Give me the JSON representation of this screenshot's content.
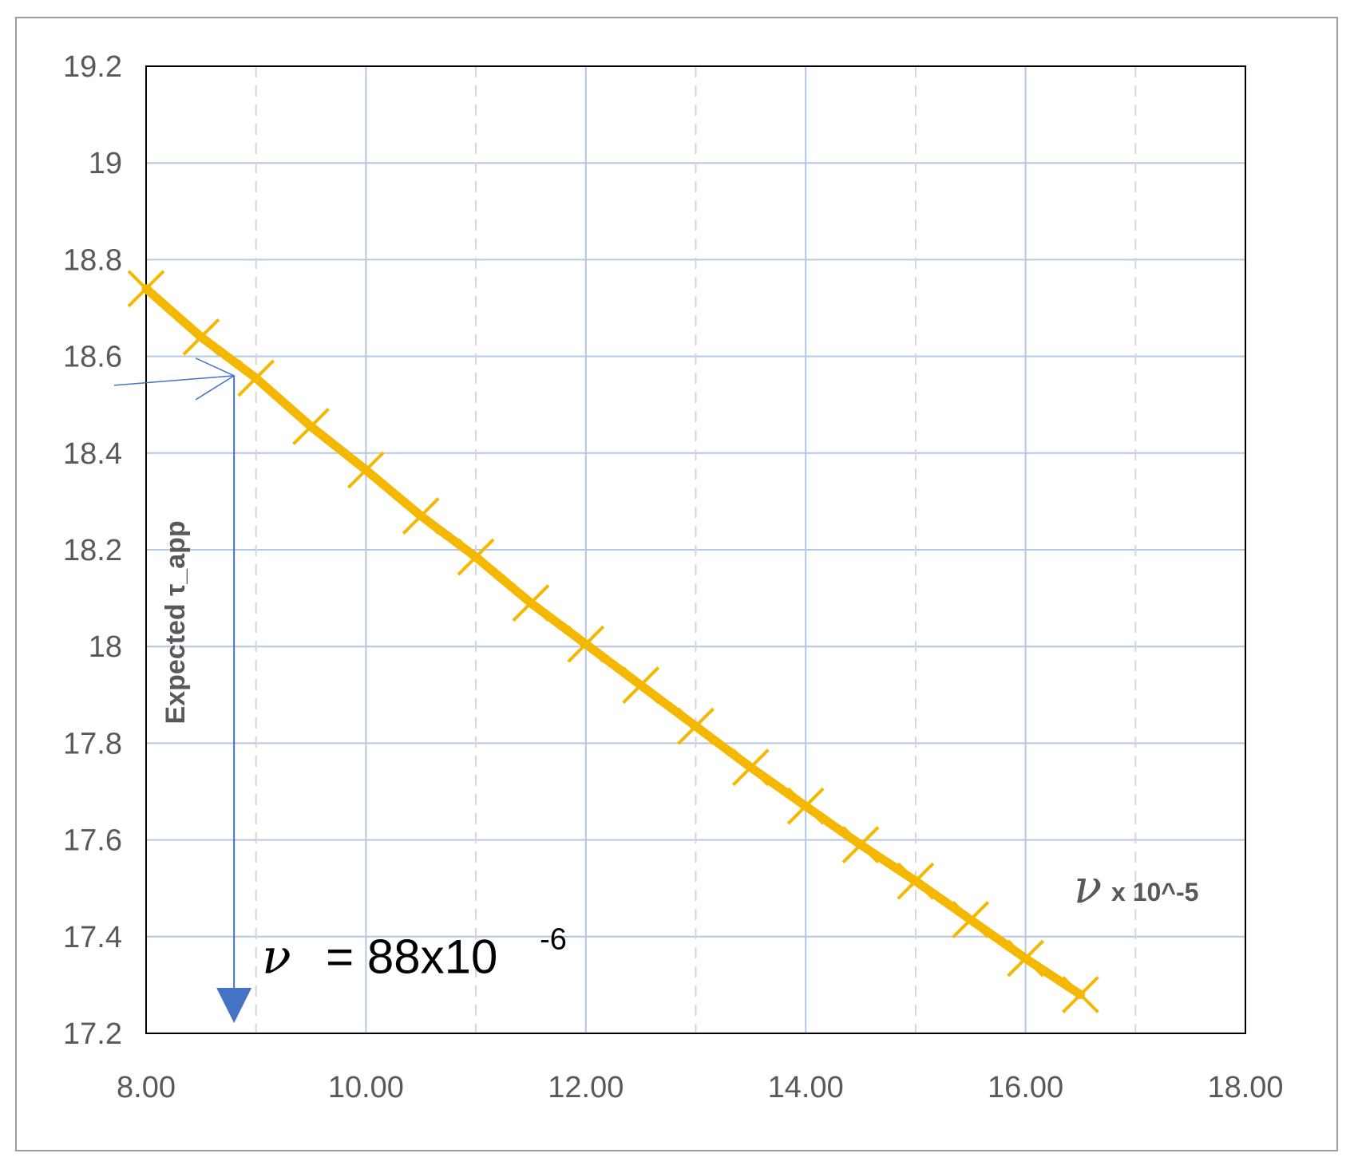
{
  "chart_data": {
    "type": "line",
    "x": [
      8.0,
      8.5,
      9.0,
      9.5,
      10.0,
      10.5,
      11.0,
      11.5,
      12.0,
      12.5,
      13.0,
      13.5,
      14.0,
      14.5,
      15.0,
      15.5,
      16.0,
      16.5
    ],
    "series": [
      {
        "values": [
          18.74,
          18.64,
          18.555,
          18.455,
          18.365,
          18.27,
          18.185,
          18.09,
          18.005,
          17.92,
          17.835,
          17.75,
          17.67,
          17.59,
          17.515,
          17.435,
          17.355,
          17.28
        ]
      }
    ],
    "xlim": [
      8.0,
      18.0
    ],
    "ylim": [
      17.2,
      19.2
    ],
    "x_ticks": [
      "8.00",
      "10.00",
      "12.00",
      "14.00",
      "16.00",
      "18.00"
    ],
    "y_ticks": [
      "17.2",
      "17.4",
      "17.6",
      "17.8",
      "18",
      "18.2",
      "18.4",
      "18.6",
      "18.8",
      "19",
      "19.2"
    ],
    "xlabel": "",
    "ylabel": "",
    "grid": true,
    "colors": {
      "line": "#F5B800",
      "grid": "#B4C7E7",
      "annotation": "#4472C4",
      "text": "#595959"
    },
    "annotations": {
      "y_arrow_label": "Expected τ_app",
      "x_axis_note_symbol": "ν",
      "x_axis_note_scale": "x 10^-5",
      "result_symbol": "ν",
      "result_equals": "= 88x10",
      "result_exponent": "-6",
      "marked_point": {
        "x": 8.8,
        "y": 18.56
      }
    }
  }
}
